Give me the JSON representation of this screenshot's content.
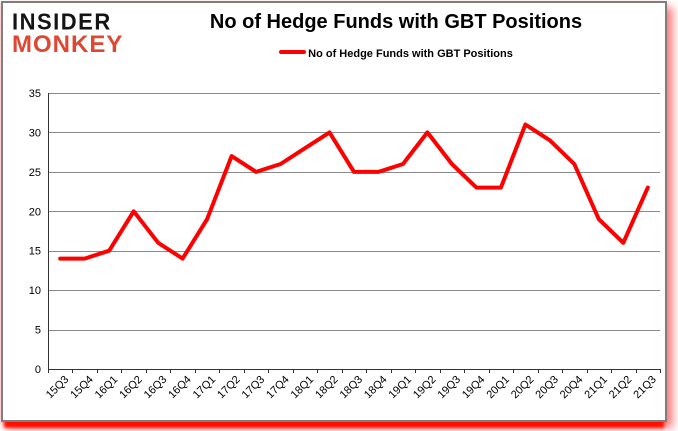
{
  "logo": {
    "line1": "INSIDER",
    "line2": "MONKEY"
  },
  "title": "No of Hedge Funds with GBT Positions",
  "legend": {
    "label": "No of Hedge Funds with GBT Positions"
  },
  "colors": {
    "series": "#ff0000",
    "grid": "#8a8a8a",
    "axis": "#333333",
    "tick_label": "#000000",
    "border": "#7e7e7e",
    "logo_black": "#141414",
    "logo_red": "#e04732",
    "shadow_red": "#ff0f00"
  },
  "chart_data": {
    "type": "line",
    "title": "No of Hedge Funds with GBT Positions",
    "categories": [
      "15Q3",
      "15Q4",
      "16Q1",
      "16Q2",
      "16Q3",
      "16Q4",
      "17Q1",
      "17Q2",
      "17Q3",
      "17Q4",
      "18Q1",
      "18Q2",
      "18Q3",
      "18Q4",
      "19Q1",
      "19Q2",
      "19Q3",
      "19Q4",
      "20Q1",
      "20Q2",
      "20Q3",
      "20Q4",
      "21Q1",
      "21Q2",
      "21Q3"
    ],
    "series": [
      {
        "name": "No of Hedge Funds with GBT Positions",
        "color": "#ff0000",
        "values": [
          14,
          14,
          15,
          20,
          16,
          14,
          19,
          27,
          25,
          26,
          28,
          30,
          25,
          25,
          26,
          30,
          26,
          23,
          23,
          31,
          29,
          26,
          19,
          16,
          23
        ]
      }
    ],
    "xlabel": "",
    "ylabel": "",
    "ylim": [
      0,
      35
    ],
    "ytick_interval": 5,
    "yticks": [
      0,
      5,
      10,
      15,
      20,
      25,
      30,
      35
    ],
    "grid": true,
    "legend_position": "top-center",
    "x_label_rotation": -45
  }
}
